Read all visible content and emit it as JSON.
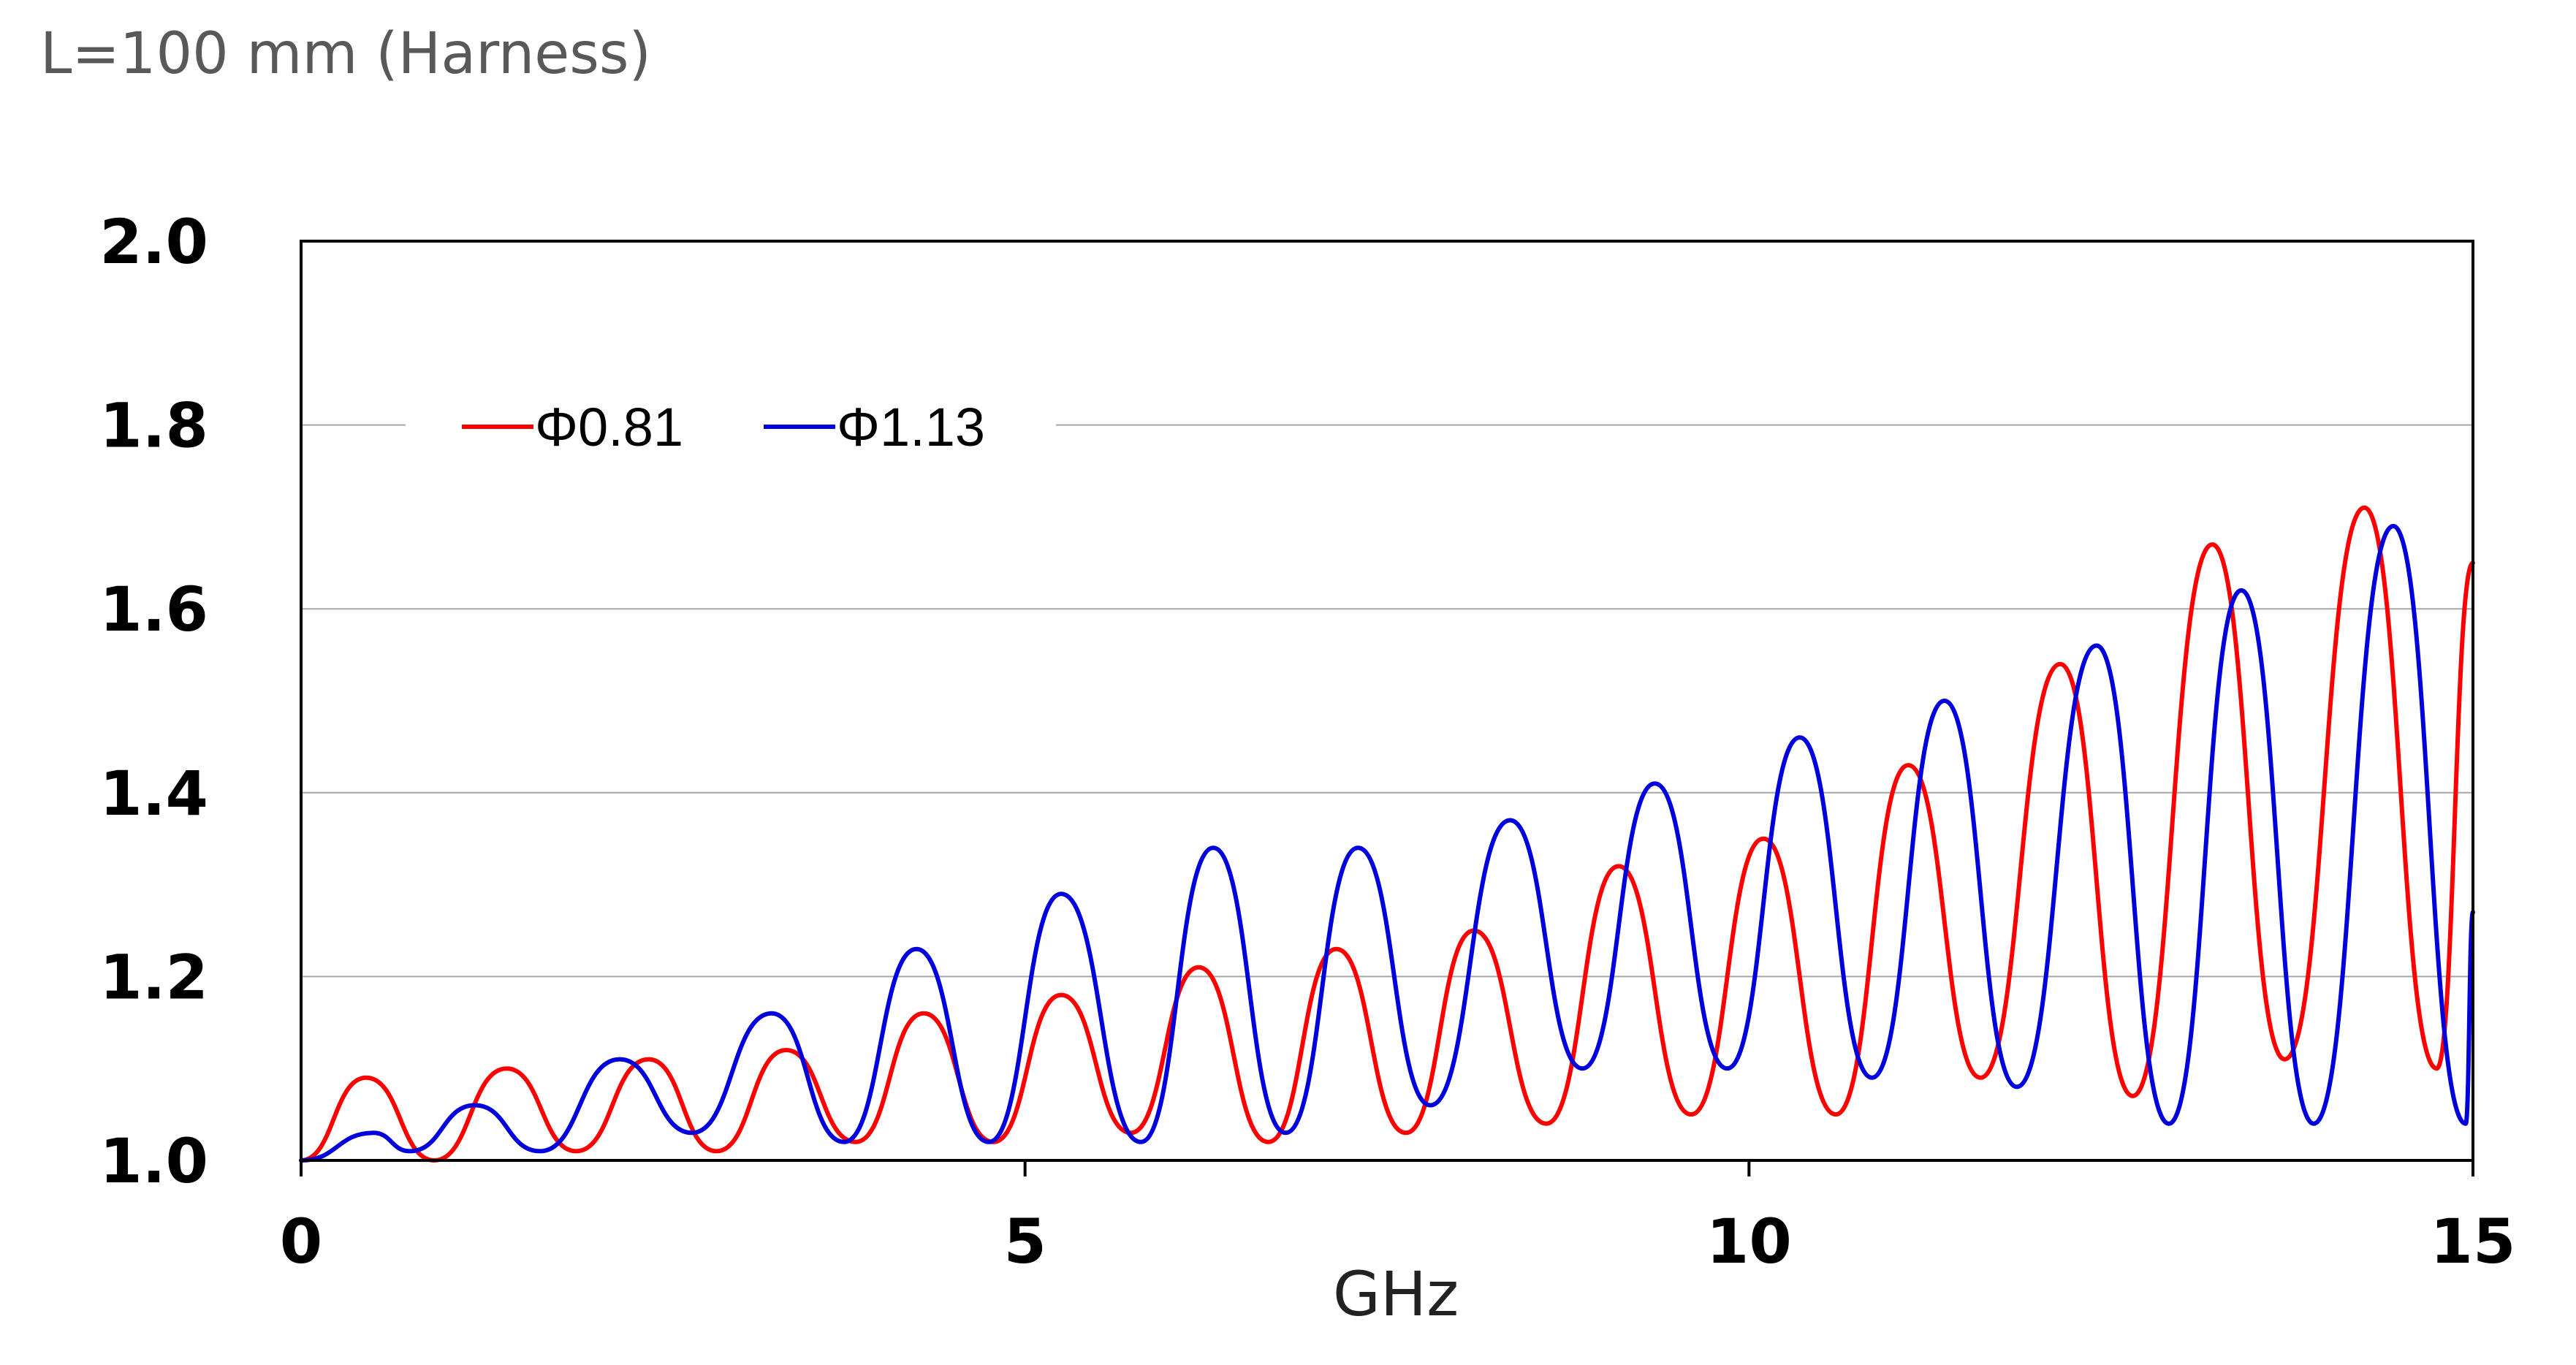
{
  "chart_data": {
    "type": "line",
    "title": "L=100 mm (Harness)",
    "xlabel": "GHz",
    "ylabel": "",
    "xlim": [
      0,
      15
    ],
    "ylim": [
      1.0,
      2.0
    ],
    "xticks": [
      {
        "value": 0,
        "label": "0"
      },
      {
        "value": 5,
        "label": "5"
      },
      {
        "value": 10,
        "label": "10"
      },
      {
        "value": 15,
        "label": "15"
      }
    ],
    "yticks": [
      {
        "value": 1.0,
        "label": "1.0"
      },
      {
        "value": 1.2,
        "label": "1.2"
      },
      {
        "value": 1.4,
        "label": "1.4"
      },
      {
        "value": 1.6,
        "label": "1.6"
      },
      {
        "value": 1.8,
        "label": "1.8"
      },
      {
        "value": 2.0,
        "label": "2.0"
      }
    ],
    "grid": "horizontal",
    "legend_position": "top-left",
    "series": [
      {
        "name": "Φ0.81",
        "color": "#ff0000",
        "x": [
          0,
          0.45,
          0.92,
          1.42,
          1.9,
          2.4,
          2.87,
          3.35,
          3.83,
          4.3,
          4.78,
          5.25,
          5.73,
          6.2,
          6.68,
          7.15,
          7.63,
          8.1,
          8.6,
          9.1,
          9.6,
          10.1,
          10.6,
          11.1,
          11.6,
          12.15,
          12.65,
          13.2,
          13.7,
          14.25,
          14.75,
          15.0
        ],
        "y": [
          1.0,
          1.09,
          1.0,
          1.1,
          1.01,
          1.11,
          1.01,
          1.12,
          1.02,
          1.16,
          1.02,
          1.18,
          1.03,
          1.21,
          1.02,
          1.23,
          1.03,
          1.25,
          1.04,
          1.32,
          1.05,
          1.35,
          1.05,
          1.43,
          1.09,
          1.54,
          1.07,
          1.67,
          1.11,
          1.71,
          1.1,
          1.65
        ]
      },
      {
        "name": "Φ1.13",
        "color": "#0000dd",
        "x": [
          0,
          0.5,
          0.75,
          1.2,
          1.65,
          2.2,
          2.7,
          3.25,
          3.75,
          4.25,
          4.75,
          5.25,
          5.8,
          6.3,
          6.8,
          7.3,
          7.8,
          8.35,
          8.85,
          9.35,
          9.85,
          10.35,
          10.85,
          11.35,
          11.85,
          12.4,
          12.9,
          13.4,
          13.9,
          14.45,
          14.95,
          15.0
        ],
        "y": [
          1.0,
          1.03,
          1.01,
          1.06,
          1.01,
          1.11,
          1.03,
          1.16,
          1.02,
          1.23,
          1.02,
          1.29,
          1.02,
          1.34,
          1.03,
          1.34,
          1.06,
          1.37,
          1.1,
          1.41,
          1.1,
          1.46,
          1.09,
          1.5,
          1.08,
          1.56,
          1.04,
          1.62,
          1.04,
          1.69,
          1.04,
          1.27
        ]
      }
    ]
  }
}
